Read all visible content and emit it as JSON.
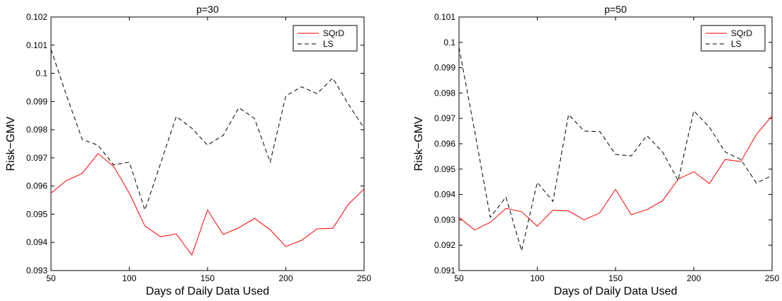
{
  "chart_data": [
    {
      "type": "line",
      "title": "p=30",
      "xlabel": "Days of Daily Data Used",
      "ylabel": "Risk−GMV",
      "xlim": [
        50,
        250
      ],
      "ylim": [
        0.093,
        0.102
      ],
      "xticks": [
        "50",
        "100",
        "150",
        "200",
        "250"
      ],
      "yticks": [
        "0.093",
        "0.094",
        "0.095",
        "0.096",
        "0.097",
        "0.098",
        "0.099",
        "0.1",
        "0.101",
        "0.102"
      ],
      "legend_position": "top-right",
      "x": [
        50,
        60,
        70,
        80,
        90,
        100,
        110,
        120,
        130,
        140,
        150,
        160,
        170,
        180,
        190,
        200,
        210,
        220,
        230,
        240,
        250
      ],
      "series": [
        {
          "name": "SQrD",
          "color": "#ff0000",
          "dash": "solid",
          "values": [
            0.09575,
            0.0962,
            0.09645,
            0.09715,
            0.0967,
            0.09575,
            0.09458,
            0.0942,
            0.0943,
            0.09355,
            0.09515,
            0.09428,
            0.09452,
            0.09485,
            0.09445,
            0.09385,
            0.09407,
            0.09448,
            0.0945,
            0.09535,
            0.0959
          ]
        },
        {
          "name": "LS",
          "color": "#000000",
          "dash": "dashed",
          "values": [
            0.10085,
            0.0992,
            0.09765,
            0.09745,
            0.09675,
            0.09685,
            0.09515,
            0.0968,
            0.09847,
            0.09805,
            0.09745,
            0.0978,
            0.09878,
            0.0984,
            0.09685,
            0.0992,
            0.09952,
            0.09928,
            0.09983,
            0.0989,
            0.09805
          ]
        }
      ]
    },
    {
      "type": "line",
      "title": "p=50",
      "xlabel": "Days of Daily Data Used",
      "ylabel": "Risk−GMV",
      "xlim": [
        50,
        250
      ],
      "ylim": [
        0.091,
        0.101
      ],
      "xticks": [
        "50",
        "100",
        "150",
        "200",
        "250"
      ],
      "yticks": [
        "0.091",
        "0.092",
        "0.093",
        "0.094",
        "0.095",
        "0.096",
        "0.097",
        "0.098",
        "0.099",
        "0.1",
        "0.101"
      ],
      "legend_position": "top-right",
      "x": [
        50,
        60,
        70,
        80,
        90,
        100,
        110,
        120,
        130,
        140,
        150,
        160,
        170,
        180,
        190,
        200,
        210,
        220,
        230,
        240,
        250
      ],
      "series": [
        {
          "name": "SQrD",
          "color": "#ff0000",
          "dash": "solid",
          "values": [
            0.0931,
            0.0926,
            0.0929,
            0.09345,
            0.09332,
            0.09275,
            0.09338,
            0.09335,
            0.093,
            0.09328,
            0.0942,
            0.0932,
            0.0934,
            0.09375,
            0.0946,
            0.0949,
            0.09443,
            0.09538,
            0.0953,
            0.09637,
            0.0971
          ]
        },
        {
          "name": "LS",
          "color": "#000000",
          "dash": "dashed",
          "values": [
            0.0998,
            0.0965,
            0.0931,
            0.0939,
            0.09178,
            0.09448,
            0.09373,
            0.09715,
            0.0965,
            0.09648,
            0.09558,
            0.09552,
            0.09632,
            0.09568,
            0.09455,
            0.0973,
            0.09665,
            0.09568,
            0.09538,
            0.09445,
            0.09475
          ]
        }
      ]
    }
  ]
}
